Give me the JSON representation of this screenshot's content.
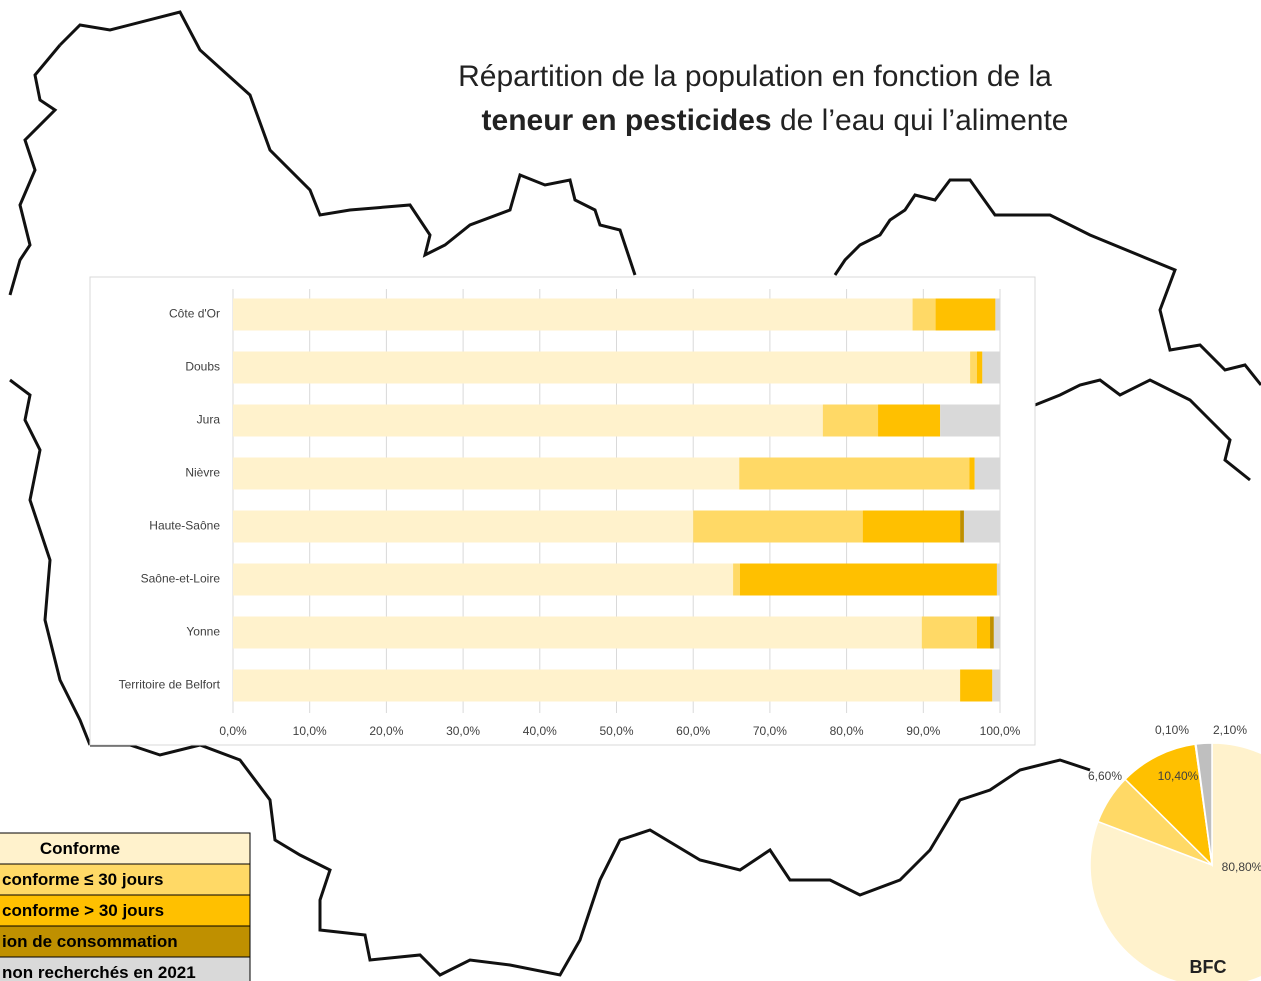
{
  "chart_data": [
    {
      "type": "stacked-bar-horizontal",
      "title": "Répartition de la population en fonction de la",
      "title_bold": "teneur en pesticides",
      "title_end": "de l’eau qui l’alimente",
      "categories": [
        "Côte d'Or",
        "Doubs",
        "Jura",
        "Nièvre",
        "Haute-Saône",
        "Saône-et-Loire",
        "Yonne",
        "Territoire de Belfort"
      ],
      "series": [
        {
          "name": "Conforme",
          "color": "#fff2cc",
          "values": [
            88.6,
            96.1,
            76.9,
            66.0,
            60.0,
            65.2,
            89.8,
            94.8
          ]
        },
        {
          "name": "conforme ≤ 30 jours",
          "color": "#ffd966",
          "values": [
            3.0,
            0.9,
            7.2,
            30.0,
            22.1,
            0.9,
            7.2,
            0
          ]
        },
        {
          "name": "conforme > 30 jours",
          "color": "#ffc000",
          "values": [
            7.8,
            0.7,
            8.1,
            0.7,
            12.7,
            33.5,
            1.7,
            4.2
          ]
        },
        {
          "name": "ion de consommation",
          "color": "#bf9000",
          "values": [
            0,
            0,
            0,
            0,
            0.5,
            0,
            0.5,
            0
          ]
        },
        {
          "name": "non recherchés en 2021",
          "color": "#d9d9d9",
          "values": [
            0.6,
            2.3,
            7.8,
            3.3,
            4.7,
            0.4,
            0.8,
            1.0
          ]
        }
      ],
      "xlim": [
        0,
        100
      ],
      "xticks": [
        {
          "value": 0,
          "label": "0,0%"
        },
        {
          "value": 10,
          "label": "10,0%"
        },
        {
          "value": 20,
          "label": "20,0%"
        },
        {
          "value": 30,
          "label": "30,0%"
        },
        {
          "value": 40,
          "label": "40,0%"
        },
        {
          "value": 50,
          "label": "50,0%"
        },
        {
          "value": 60,
          "label": "60,0%"
        },
        {
          "value": 70,
          "label": "70,0%"
        },
        {
          "value": 80,
          "label": "80,0%"
        },
        {
          "value": 90,
          "label": "90,0%"
        },
        {
          "value": 100,
          "label": "100,0%"
        }
      ],
      "grid": true
    },
    {
      "type": "pie",
      "label": "BFC",
      "values": [
        80.8,
        6.6,
        10.4,
        0.1,
        2.1
      ],
      "value_labels": [
        "80,80%",
        "6,60%",
        "10,40%",
        "0,10%",
        "2,10%"
      ],
      "colors": [
        "#fff2cc",
        "#ffd966",
        "#ffc000",
        "#bf9000",
        "#bfbfbf"
      ]
    }
  ]
}
